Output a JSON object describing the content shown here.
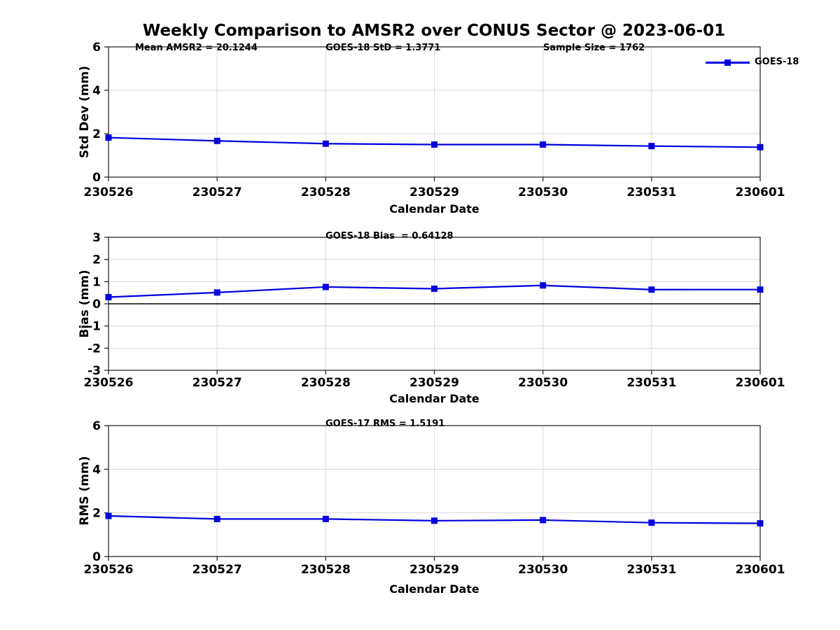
{
  "title": "Weekly Comparison to AMSR2 over CONUS Sector @ 2023-06-01",
  "legend": {
    "label": "GOES-18",
    "position": "top-right"
  },
  "colors": {
    "line": "#0000DD",
    "grid": "#D8D8D8",
    "axis": "#1A1A1A",
    "zero_line": "#000000",
    "background": "#FFFFFF",
    "text": "#000000"
  },
  "chart_data": [
    {
      "type": "line",
      "name": "std_dev",
      "ylabel": "Std Dev (mm)",
      "xlabel": "Calendar Date",
      "x": [
        "230526",
        "230527",
        "230528",
        "230529",
        "230530",
        "230531",
        "230601"
      ],
      "series": [
        {
          "name": "GOES-18",
          "values": [
            1.82,
            1.67,
            1.54,
            1.5,
            1.5,
            1.43,
            1.3771
          ]
        }
      ],
      "ylim": [
        0,
        6
      ],
      "yticks": [
        0,
        2,
        4,
        6
      ],
      "grid": true,
      "zero_line": false,
      "marker": "square",
      "annotations": [
        {
          "text": "Mean AMSR2 = 20.1244"
        },
        {
          "text": "GOES-18 StD = 1.3771"
        },
        {
          "text": "Sample Size = 1762"
        }
      ]
    },
    {
      "type": "line",
      "name": "bias",
      "ylabel": "Bias (mm)",
      "xlabel": "Calendar Date",
      "x": [
        "230526",
        "230527",
        "230528",
        "230529",
        "230530",
        "230531",
        "230601"
      ],
      "series": [
        {
          "name": "GOES-18",
          "values": [
            0.3,
            0.51,
            0.76,
            0.68,
            0.83,
            0.64,
            0.64128
          ]
        }
      ],
      "ylim": [
        -3,
        3
      ],
      "yticks": [
        3,
        2,
        1,
        0,
        -1,
        -2,
        -3
      ],
      "grid": true,
      "zero_line": true,
      "marker": "square",
      "annotations": [
        {
          "text": "GOES-18 Bias  = 0.64128"
        }
      ]
    },
    {
      "type": "line",
      "name": "rms",
      "ylabel": "RMS (mm)",
      "xlabel": "Calendar Date",
      "x": [
        "230526",
        "230527",
        "230528",
        "230529",
        "230530",
        "230531",
        "230601"
      ],
      "series": [
        {
          "name": "GOES-18",
          "values": [
            1.86,
            1.72,
            1.72,
            1.64,
            1.67,
            1.55,
            1.5191
          ]
        }
      ],
      "ylim": [
        0,
        6
      ],
      "yticks": [
        0,
        2,
        4,
        6
      ],
      "grid": true,
      "zero_line": false,
      "marker": "square",
      "annotations": [
        {
          "text": "GOES-17 RMS = 1.5191"
        }
      ]
    }
  ]
}
